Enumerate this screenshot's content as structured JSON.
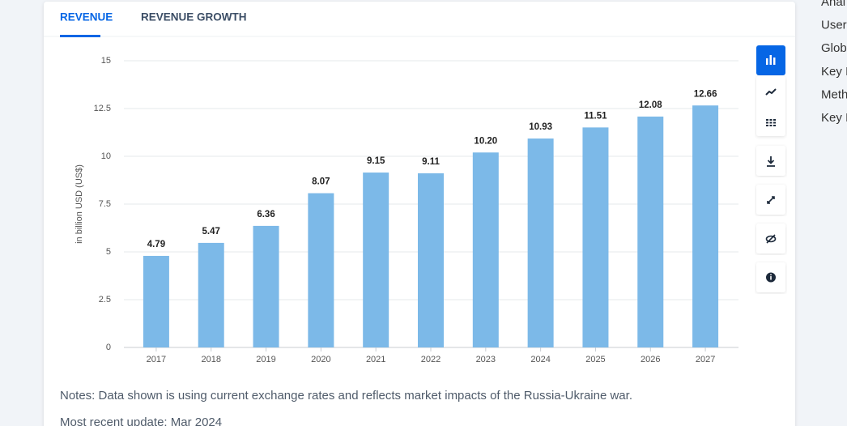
{
  "tabs": [
    "REVENUE",
    "REVENUE GROWTH"
  ],
  "sidebar": [
    "Anal",
    "User",
    "Glob",
    "Key I",
    "Meth",
    "Key I"
  ],
  "chart_data": {
    "type": "bar",
    "y_label": "in billion USD (US$)",
    "categories": [
      "2017",
      "2018",
      "2019",
      "2020",
      "2021",
      "2022",
      "2023",
      "2024",
      "2025",
      "2026",
      "2027"
    ],
    "values": [
      4.79,
      5.47,
      6.36,
      8.07,
      9.15,
      9.11,
      10.2,
      10.93,
      11.51,
      12.08,
      12.66
    ],
    "value_labels": [
      "4.79",
      "5.47",
      "6.36",
      "8.07",
      "9.15",
      "9.11",
      "10.20",
      "10.93",
      "11.51",
      "12.08",
      "12.66"
    ],
    "color": "#7cb9e8",
    "ylim": [
      0,
      15
    ],
    "yticks": [
      0,
      2.5,
      5,
      7.5,
      10,
      12.5,
      15
    ],
    "grid": true
  },
  "notes": "Notes: Data shown is using current exchange rates and reflects market impacts of the Russia-Ukraine war.",
  "update": "Most recent update: Mar 2024"
}
